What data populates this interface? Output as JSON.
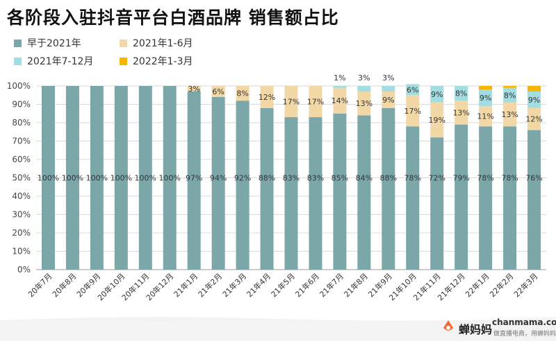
{
  "title": "各阶段入驻抖音平台白酒品牌  销售额占比",
  "legend": [
    {
      "label": "早于2021年",
      "color": "#7BA7A9"
    },
    {
      "label": "2021年1-6月",
      "color": "#F2D8A6"
    },
    {
      "label": "2021年7-12月",
      "color": "#A3DDE2"
    },
    {
      "label": "2022年1-3月",
      "color": "#F7B500"
    }
  ],
  "chart_data": {
    "type": "bar",
    "stacked": true,
    "title": "各阶段入驻抖音平台白酒品牌  销售额占比",
    "categories": [
      "20年7月",
      "20年8月",
      "20年9月",
      "20年10月",
      "20年11月",
      "20年12月",
      "21年1月",
      "21年2月",
      "21年3月",
      "21年4月",
      "21年5月",
      "21年6月",
      "21年7月",
      "21年8月",
      "21年9月",
      "21年10月",
      "21年11月",
      "21年12月",
      "22年1月",
      "22年2月",
      "22年3月"
    ],
    "series": [
      {
        "name": "早于2021年",
        "color": "#7BA7A9",
        "values": [
          100,
          100,
          100,
          100,
          100,
          100,
          97,
          94,
          92,
          88,
          83,
          83,
          85,
          84,
          88,
          78,
          72,
          79,
          78,
          78,
          76
        ]
      },
      {
        "name": "2021年1-6月",
        "color": "#F2D8A6",
        "values": [
          0,
          0,
          0,
          0,
          0,
          0,
          3,
          6,
          8,
          12,
          17,
          17,
          14,
          13,
          9,
          17,
          19,
          13,
          11,
          13,
          12
        ]
      },
      {
        "name": "2021年7-12月",
        "color": "#A3DDE2",
        "values": [
          0,
          0,
          0,
          0,
          0,
          0,
          0,
          0,
          0,
          0,
          0,
          0,
          1,
          3,
          3,
          6,
          9,
          8,
          9,
          8,
          9
        ]
      },
      {
        "name": "2022年1-3月",
        "color": "#F7B500",
        "values": [
          0,
          0,
          0,
          0,
          0,
          0,
          0,
          0,
          0,
          0,
          0,
          0,
          0,
          0,
          0,
          0,
          0,
          0,
          2,
          1,
          3
        ]
      }
    ],
    "labels": [
      [
        "100%",
        "100%",
        "100%",
        "100%",
        "100%",
        "100%",
        "97%",
        "94%",
        "92%",
        "88%",
        "83%",
        "83%",
        "85%",
        "84%",
        "88%",
        "78%",
        "72%",
        "79%",
        "78%",
        "78%",
        "76%"
      ],
      [
        "",
        "",
        "",
        "",
        "",
        "",
        "3%",
        "6%",
        "8%",
        "12%",
        "17%",
        "17%",
        "14%",
        "13%",
        "9%",
        "17%",
        "19%",
        "13%",
        "11%",
        "13%",
        "12%"
      ],
      [
        "",
        "",
        "",
        "",
        "",
        "",
        "",
        "",
        "",
        "",
        "",
        "",
        "1%",
        "3%",
        "3%",
        "6%",
        "9%",
        "8%",
        "9%",
        "8%",
        "9%"
      ],
      [
        "",
        "",
        "",
        "",
        "",
        "",
        "",
        "",
        "",
        "",
        "",
        "",
        "",
        "",
        "",
        "",
        "",
        "",
        "",
        "",
        ""
      ]
    ],
    "yticks": [
      "0%",
      "10%",
      "20%",
      "30%",
      "40%",
      "50%",
      "60%",
      "70%",
      "80%",
      "90%",
      "100%"
    ],
    "ylim": [
      0,
      100
    ],
    "grid": true,
    "legend_position": "top-left"
  },
  "footer": {
    "brand": "蝉妈妈",
    "site": "chanmama.com",
    "slogan": "做直播电商，用蝉妈妈"
  }
}
